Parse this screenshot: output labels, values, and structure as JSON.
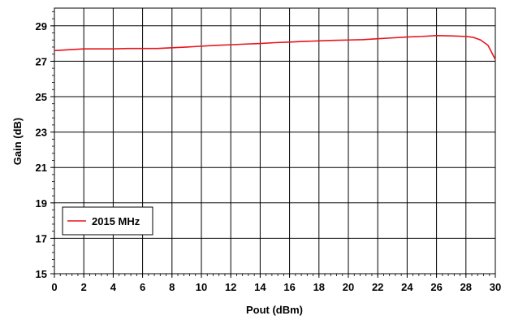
{
  "chart_data": {
    "type": "line",
    "title": "",
    "xlabel": "Pout (dBm)",
    "ylabel": "Gain (dB)",
    "xlim": [
      0,
      30
    ],
    "ylim": [
      15,
      30
    ],
    "x_ticks": [
      0,
      2,
      4,
      6,
      8,
      10,
      12,
      14,
      16,
      18,
      20,
      22,
      24,
      26,
      28,
      30
    ],
    "y_ticks": [
      15,
      17,
      19,
      21,
      23,
      25,
      27,
      29
    ],
    "x_tick_labels": [
      "0",
      "2",
      "4",
      "6",
      "8",
      "10",
      "12",
      "14",
      "16",
      "18",
      "20",
      "22",
      "24",
      "26",
      "28",
      "30"
    ],
    "y_tick_labels": [
      "15",
      "17",
      "19",
      "21",
      "23",
      "25",
      "27",
      "29"
    ],
    "grid": true,
    "legend_position": "lower-left",
    "series": [
      {
        "name": "2015 MHz",
        "color": "#e8141c",
        "x": [
          0,
          1,
          2,
          3,
          4,
          5,
          6,
          7,
          8,
          9,
          10,
          11,
          12,
          13,
          14,
          15,
          16,
          17,
          18,
          19,
          20,
          21,
          22,
          23,
          24,
          25,
          26,
          27,
          28,
          28.5,
          29,
          29.5,
          30
        ],
        "y": [
          27.6,
          27.65,
          27.7,
          27.7,
          27.7,
          27.72,
          27.72,
          27.72,
          27.76,
          27.8,
          27.85,
          27.9,
          27.93,
          27.97,
          28.0,
          28.05,
          28.08,
          28.12,
          28.15,
          28.18,
          28.2,
          28.22,
          28.27,
          28.32,
          28.37,
          28.4,
          28.45,
          28.43,
          28.4,
          28.35,
          28.2,
          27.9,
          27.1
        ]
      }
    ]
  }
}
